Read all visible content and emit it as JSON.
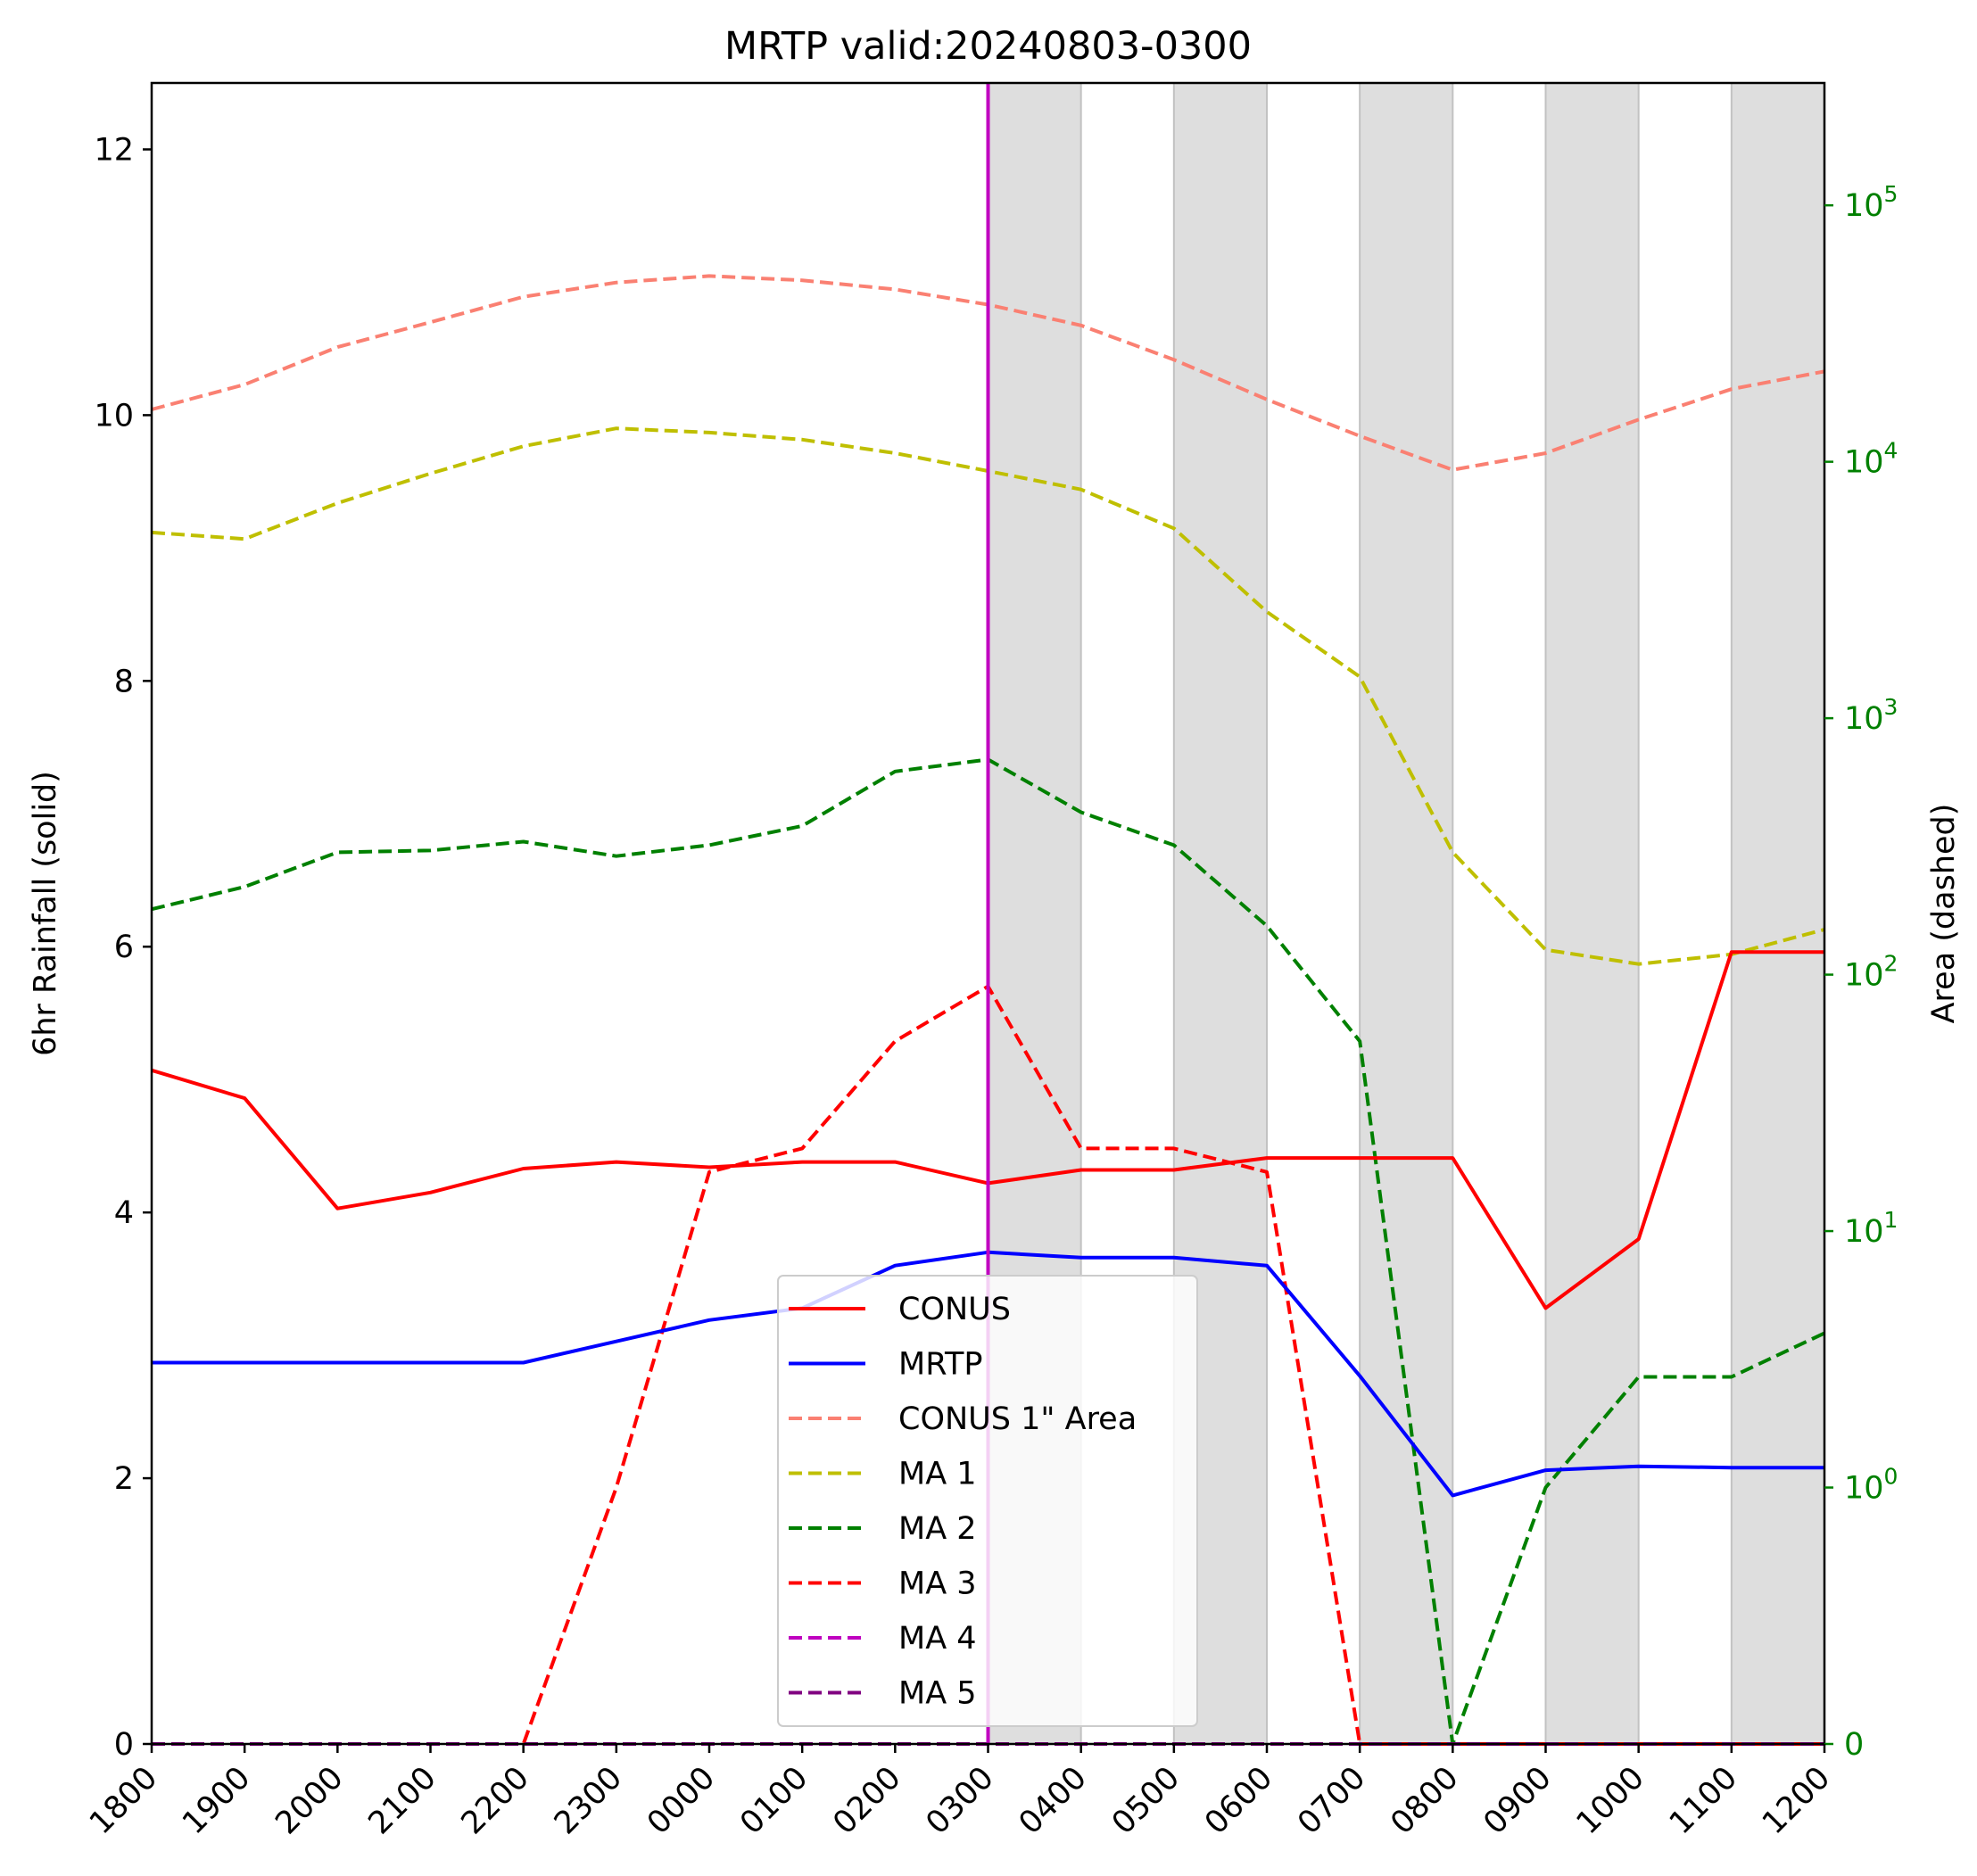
{
  "chart_data": {
    "type": "line",
    "title": "MRTP valid:20240803-0300",
    "ylabel": "6hr Rainfall (solid)",
    "ylabel_right": "Area (dashed)",
    "categories": [
      "1800",
      "1900",
      "2000",
      "2100",
      "2200",
      "2300",
      "0000",
      "0100",
      "0200",
      "0300",
      "0400",
      "0500",
      "0600",
      "0700",
      "0800",
      "0900",
      "1000",
      "1100",
      "1200"
    ],
    "ylim": [
      0,
      12.5
    ],
    "yticks": [
      0,
      2,
      4,
      6,
      8,
      10,
      12
    ],
    "yscale_right": "symlog",
    "ylim_right": [
      0,
      300000
    ],
    "yticks_right": [
      {
        "value": 0,
        "label": "0"
      },
      {
        "value": 1,
        "label": "10",
        "exp": "0"
      },
      {
        "value": 10,
        "label": "10",
        "exp": "1"
      },
      {
        "value": 100,
        "label": "10",
        "exp": "2"
      },
      {
        "value": 1000,
        "label": "10",
        "exp": "3"
      },
      {
        "value": 10000,
        "label": "10",
        "exp": "4"
      },
      {
        "value": 100000,
        "label": "10",
        "exp": "5"
      }
    ],
    "valid_marker": {
      "x": "0300",
      "color": "#c000c0"
    },
    "shaded_hours": [
      "0300-0400",
      "0500-0600",
      "0700-0800",
      "0900-1000",
      "1100-1200"
    ],
    "series": [
      {
        "name": "CONUS",
        "axis": "left",
        "style": "solid",
        "color": "#ff0000",
        "values": [
          5.07,
          4.86,
          4.03,
          4.15,
          4.33,
          4.38,
          4.34,
          4.38,
          4.38,
          4.22,
          4.32,
          4.32,
          4.41,
          4.41,
          4.41,
          3.28,
          3.8,
          5.96,
          5.96
        ]
      },
      {
        "name": "MRTP",
        "axis": "left",
        "style": "solid",
        "color": "#0000ff",
        "values": [
          2.87,
          2.87,
          2.87,
          2.87,
          2.87,
          3.03,
          3.19,
          3.28,
          3.6,
          3.7,
          3.66,
          3.66,
          3.6,
          2.77,
          1.87,
          2.06,
          2.09,
          2.08,
          2.08
        ]
      },
      {
        "name": "CONUS 1\" Area",
        "axis": "right",
        "style": "dashed",
        "color": "#fa8072",
        "values": [
          16000,
          20000,
          28000,
          35000,
          44000,
          50000,
          53000,
          51000,
          47000,
          41000,
          34000,
          25000,
          17500,
          12600,
          9300,
          10800,
          14600,
          19200,
          22500
        ]
      },
      {
        "name": "MA 1",
        "axis": "right",
        "style": "dashed",
        "color": "#bfbf00",
        "values": [
          5300,
          5000,
          6900,
          9000,
          11500,
          13500,
          13000,
          12200,
          10800,
          9200,
          7800,
          5500,
          2600,
          1450,
          300,
          125,
          110,
          120,
          150
        ]
      },
      {
        "name": "MA 2",
        "axis": "right",
        "style": "dashed",
        "color": "#008000",
        "values": [
          180,
          220,
          300,
          305,
          330,
          290,
          320,
          380,
          620,
          690,
          430,
          320,
          155,
          55,
          0,
          1,
          2.7,
          2.7,
          4
        ]
      },
      {
        "name": "MA 3",
        "axis": "right",
        "style": "dashed",
        "color": "#ff0000",
        "values": [
          0,
          0,
          0,
          0,
          0,
          1,
          17,
          21,
          55,
          90,
          21,
          21,
          17,
          0,
          0,
          0,
          0,
          0,
          0
        ]
      },
      {
        "name": "MA 4",
        "axis": "right",
        "style": "dashed",
        "color": "#bf00bf",
        "values": [
          0,
          0,
          0,
          0,
          0,
          0,
          0,
          0,
          0,
          0,
          0,
          0,
          0,
          0,
          0,
          0,
          0,
          0,
          0
        ]
      },
      {
        "name": "MA 5",
        "axis": "right",
        "style": "dashed",
        "color": "#800080",
        "values": [
          0,
          0,
          0,
          0,
          0,
          0,
          0,
          0,
          0,
          0,
          0,
          0,
          0,
          0,
          0,
          0,
          0,
          0,
          0
        ]
      }
    ],
    "legend": {
      "position": "lower center"
    },
    "grid": false
  }
}
